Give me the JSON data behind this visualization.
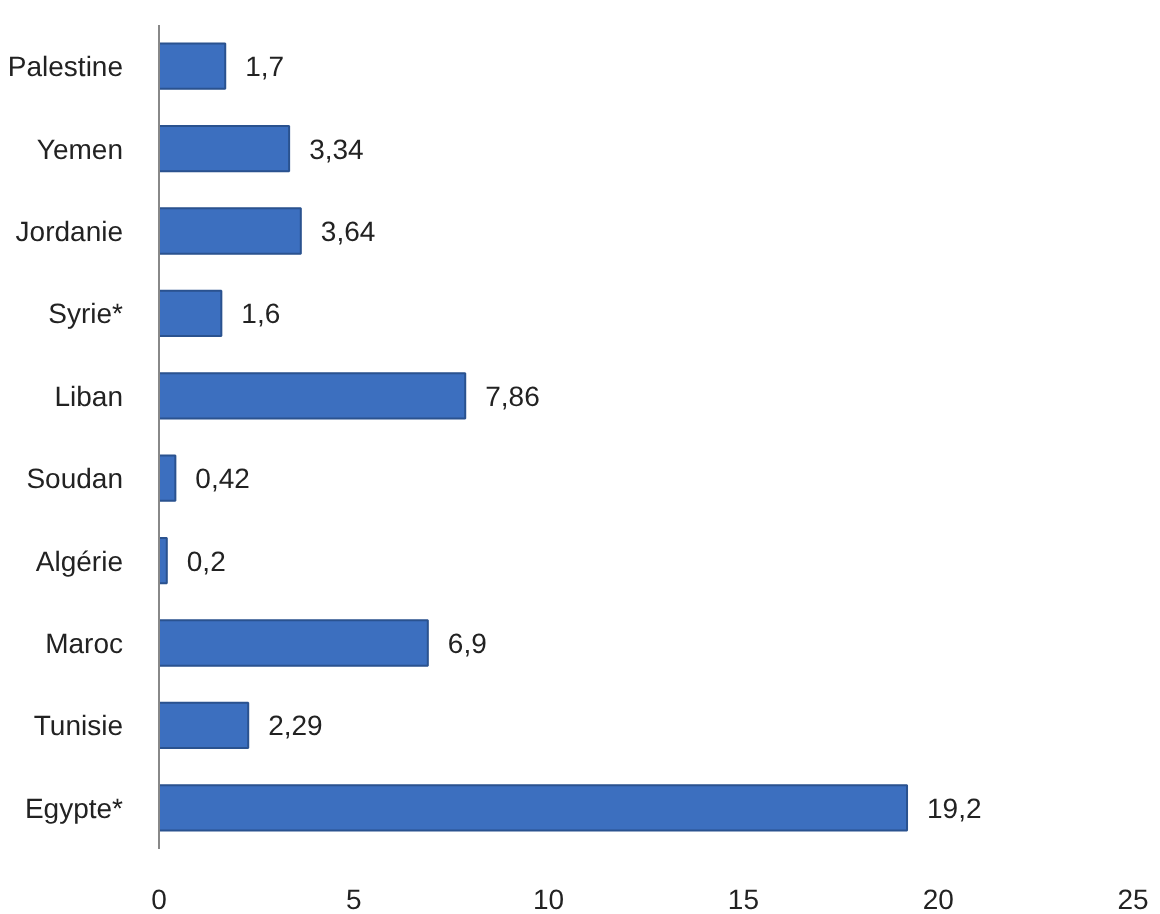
{
  "chart_data": {
    "type": "bar",
    "orientation": "horizontal",
    "categories": [
      "Palestine",
      "Yemen",
      "Jordanie",
      "Syrie*",
      "Liban",
      "Soudan",
      "Algérie",
      "Maroc",
      "Tunisie",
      "Egypte*"
    ],
    "values": [
      1.7,
      3.34,
      3.64,
      1.6,
      7.86,
      0.42,
      0.2,
      6.9,
      2.29,
      19.2
    ],
    "value_labels": [
      "1,7",
      "3,34",
      "3,64",
      "1,6",
      "7,86",
      "0,42",
      "0,2",
      "6,9",
      "2,29",
      "19,2"
    ],
    "color": "#3c6fbf",
    "xlim": [
      0,
      25
    ],
    "xticks": [
      0,
      5,
      10,
      15,
      20,
      25
    ],
    "grid": false
  }
}
